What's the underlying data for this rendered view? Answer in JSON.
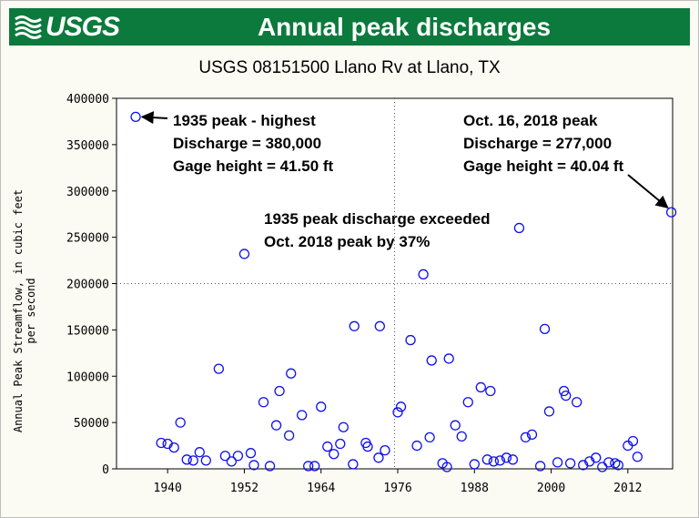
{
  "banner": {
    "logo_text": "USGS",
    "title": "Annual peak discharges"
  },
  "colors": {
    "banner_green": "#0b7a3c",
    "marker": "#1010ee",
    "grid": "#555555"
  },
  "chart_data": {
    "type": "scatter",
    "title": "USGS 08151500 Llano Rv at Llano, TX",
    "ylabel": "Annual Peak Streamflow, in cubic feet per second",
    "ylabel_lines": [
      "Annual Peak Streamflow, in cubic feet",
      "per second"
    ],
    "xlabel": "",
    "xlim": [
      1932,
      2019
    ],
    "ylim": [
      0,
      400000
    ],
    "xticks": [
      1940,
      1952,
      1964,
      1976,
      1988,
      2000,
      2012
    ],
    "yticks": [
      0,
      50000,
      100000,
      150000,
      200000,
      250000,
      300000,
      350000,
      400000
    ],
    "grid": "dotted crosshair at median",
    "series": [
      {
        "marker": "open-circle",
        "points": [
          [
            1935,
            380000
          ],
          [
            1939,
            28000
          ],
          [
            1940,
            27000
          ],
          [
            1941,
            23000
          ],
          [
            1942,
            50000
          ],
          [
            1943,
            10000
          ],
          [
            1944,
            9000
          ],
          [
            1945,
            18000
          ],
          [
            1946,
            9000
          ],
          [
            1948,
            108000
          ],
          [
            1949,
            14000
          ],
          [
            1950,
            8000
          ],
          [
            1951,
            14000
          ],
          [
            1952,
            232000
          ],
          [
            1953,
            17000
          ],
          [
            1953.5,
            4000
          ],
          [
            1955,
            72000
          ],
          [
            1956,
            3000
          ],
          [
            1957,
            47000
          ],
          [
            1957.5,
            84000
          ],
          [
            1959,
            36000
          ],
          [
            1959.3,
            103000
          ],
          [
            1961,
            58000
          ],
          [
            1962,
            3000
          ],
          [
            1963,
            3000
          ],
          [
            1964,
            67000
          ],
          [
            1965,
            24000
          ],
          [
            1966,
            16000
          ],
          [
            1967,
            27000
          ],
          [
            1967.5,
            45000
          ],
          [
            1969,
            5000
          ],
          [
            1969.2,
            154000
          ],
          [
            1971,
            28000
          ],
          [
            1971.3,
            24000
          ],
          [
            1973,
            12000
          ],
          [
            1973.2,
            154000
          ],
          [
            1974,
            20000
          ],
          [
            1976,
            61000
          ],
          [
            1976.5,
            67000
          ],
          [
            1978,
            139000
          ],
          [
            1979,
            25000
          ],
          [
            1980,
            210000
          ],
          [
            1981,
            34000
          ],
          [
            1981.3,
            117000
          ],
          [
            1983,
            6000
          ],
          [
            1983.7,
            2000
          ],
          [
            1984,
            119000
          ],
          [
            1985,
            47000
          ],
          [
            1986,
            35000
          ],
          [
            1987,
            72000
          ],
          [
            1988,
            5000
          ],
          [
            1989,
            88000
          ],
          [
            1990,
            10000
          ],
          [
            1990.5,
            84000
          ],
          [
            1991,
            8000
          ],
          [
            1992,
            9000
          ],
          [
            1993,
            12000
          ],
          [
            1994,
            10000
          ],
          [
            1995,
            260000
          ],
          [
            1996,
            34000
          ],
          [
            1997,
            37000
          ],
          [
            1998.3,
            3000
          ],
          [
            1999,
            151000
          ],
          [
            1999.7,
            62000
          ],
          [
            2001,
            7000
          ],
          [
            2002,
            84000
          ],
          [
            2002.3,
            79000
          ],
          [
            2003,
            6000
          ],
          [
            2004,
            72000
          ],
          [
            2005,
            4000
          ],
          [
            2006,
            8000
          ],
          [
            2007,
            12000
          ],
          [
            2008,
            2000
          ],
          [
            2009,
            7000
          ],
          [
            2010,
            6000
          ],
          [
            2010.5,
            4000
          ],
          [
            2012,
            25000
          ],
          [
            2012.8,
            30000
          ],
          [
            2013.5,
            13000
          ],
          [
            2018.8,
            277000
          ]
        ]
      }
    ],
    "annotations": [
      {
        "lines": [
          "1935 peak - highest",
          "Discharge = 380,000",
          "Gage height = 41.50 ft"
        ],
        "arrow_to": [
          1935,
          380000
        ]
      },
      {
        "lines": [
          "Oct. 16, 2018 peak",
          "Discharge = 277,000",
          "Gage height = 40.04 ft"
        ],
        "arrow_to": [
          2018.8,
          277000
        ]
      },
      {
        "lines": [
          "1935 peak discharge exceeded",
          "Oct. 2018 peak by 37%"
        ]
      }
    ]
  }
}
